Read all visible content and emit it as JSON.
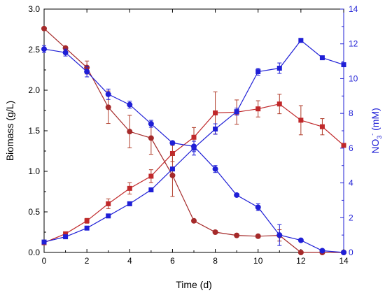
{
  "chart_data": {
    "type": "line",
    "xlabel": "Time (d)",
    "ylabel_left": "Biomass (g/L)",
    "ylabel_right": {
      "base": "NO",
      "sub": "3",
      "sup": "-",
      "rest": " (mM)"
    },
    "xlim": [
      0,
      14
    ],
    "ylim_left": [
      0,
      3.0
    ],
    "ylim_right": [
      0,
      14
    ],
    "x_ticks": [
      "0",
      "2",
      "4",
      "6",
      "8",
      "10",
      "12",
      "14"
    ],
    "y_left_ticks": [
      "0.0",
      "0.5",
      "1.0",
      "1.5",
      "2.0",
      "2.5",
      "3.0"
    ],
    "y_right_ticks": [
      "0",
      "2",
      "4",
      "6",
      "8",
      "10",
      "12",
      "14"
    ],
    "grid": false,
    "colors": {
      "red_series": "#c0282a",
      "brown_series": "#a52a2a",
      "blue_series": "#1f1fd6",
      "axis_right": "#1f1fd6",
      "errorbar_red": "#b03c2a"
    },
    "series": [
      {
        "axis": "left",
        "color": "#c0282a",
        "marker": "square",
        "x": [
          0,
          1,
          2,
          3,
          4,
          5,
          6,
          7,
          8,
          9,
          10,
          11,
          12,
          13,
          14
        ],
        "y": [
          0.12,
          0.23,
          0.39,
          0.6,
          0.79,
          0.94,
          1.22,
          1.42,
          1.72,
          1.73,
          1.77,
          1.83,
          1.63,
          1.55,
          1.32
        ],
        "err": [
          0.0,
          0.02,
          0.03,
          0.06,
          0.07,
          0.08,
          0.1,
          0.12,
          0.26,
          0.15,
          0.1,
          0.12,
          0.18,
          0.1,
          0.0
        ]
      },
      {
        "axis": "left",
        "color": "#a52a2a",
        "marker": "circle",
        "x": [
          0,
          1,
          2,
          3,
          4,
          5,
          6,
          7,
          8,
          9,
          10,
          11,
          12,
          13,
          14
        ],
        "y": [
          2.76,
          2.52,
          2.28,
          1.79,
          1.49,
          1.41,
          0.95,
          0.39,
          0.25,
          0.21,
          0.2,
          0.21,
          0.0,
          0.0,
          0.0
        ],
        "err": [
          0.0,
          0.02,
          0.08,
          0.2,
          0.2,
          0.2,
          0.26,
          0.02,
          0.02,
          0.02,
          0.02,
          0.07,
          0.0,
          0.0,
          0.0
        ]
      },
      {
        "axis": "right",
        "color": "#1f1fd6",
        "marker": "circle-square",
        "x": [
          0,
          1,
          2,
          3,
          4,
          5,
          6,
          7,
          8,
          9,
          10,
          11,
          12,
          13,
          14
        ],
        "y": [
          11.7,
          11.5,
          10.4,
          9.1,
          8.5,
          7.4,
          6.3,
          6.1,
          4.8,
          3.3,
          2.6,
          1.0,
          0.7,
          0.1,
          0.0
        ],
        "err": [
          0.2,
          0.2,
          0.3,
          0.3,
          0.2,
          0.2,
          0.1,
          0.3,
          0.2,
          0.1,
          0.2,
          0.6,
          0.1,
          0.0,
          0.0
        ]
      },
      {
        "axis": "right",
        "color": "#1f1fd6",
        "marker": "square",
        "x": [
          0,
          1,
          2,
          3,
          4,
          5,
          6,
          7,
          8,
          9,
          10,
          11,
          12,
          13,
          14
        ],
        "y": [
          0.6,
          0.9,
          1.4,
          2.1,
          2.8,
          3.6,
          4.8,
          6.0,
          7.1,
          8.1,
          10.4,
          10.6,
          12.2,
          11.2,
          10.8
        ],
        "err": [
          0.0,
          0.0,
          0.0,
          0.1,
          0.1,
          0.1,
          0.1,
          0.4,
          0.3,
          0.2,
          0.2,
          0.3,
          0.0,
          0.0,
          0.0
        ]
      }
    ]
  }
}
